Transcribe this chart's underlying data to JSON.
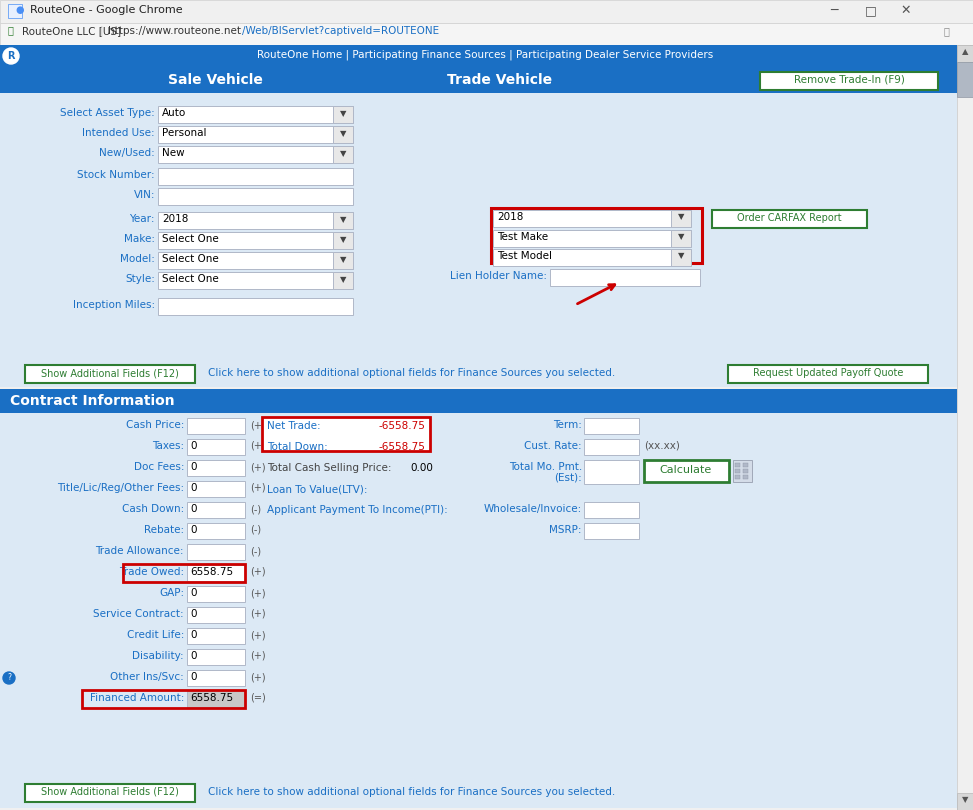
{
  "title_bar": "RouteOne - Google Chrome",
  "url_prefix": "RouteOne LLC [US]",
  "url_main": "https://www.routeone.net",
  "url_path": "/Web/BIServlet?captiveId=ROUTEONE",
  "nav_text": "RouteOne Home | Participating Finance Sources | Participating Dealer Service Providers",
  "bg_color": "#dce9f5",
  "header_color": "#1a6fc4",
  "sale_fields": [
    {
      "label": "Select Asset Type:",
      "value": "Auto",
      "dropdown": true
    },
    {
      "label": "Intended Use:",
      "value": "Personal",
      "dropdown": true
    },
    {
      "label": "New/Used:",
      "value": "New",
      "dropdown": true
    },
    {
      "label": "Stock Number:",
      "value": "",
      "dropdown": false
    },
    {
      "label": "VIN:",
      "value": "",
      "dropdown": false
    },
    {
      "label": "Year:",
      "value": "2018",
      "dropdown": true
    },
    {
      "label": "Make:",
      "value": "Select One",
      "dropdown": true
    },
    {
      "label": "Model:",
      "value": "Select One",
      "dropdown": true
    },
    {
      "label": "Style:",
      "value": "Select One",
      "dropdown": true
    },
    {
      "label": "Inception Miles:",
      "value": "",
      "dropdown": false
    }
  ],
  "trade_vals": [
    "2018",
    "Test Make",
    "Test Model"
  ],
  "lien_label": "Lien Holder Name:",
  "show_fields_text": "Click here to show additional optional fields for Finance Sources you selected.",
  "contract_left": [
    {
      "label": "Cash Price:",
      "value": "",
      "suffix": "(+)"
    },
    {
      "label": "Taxes:",
      "value": "0",
      "suffix": "(+)"
    },
    {
      "label": "Doc Fees:",
      "value": "0",
      "suffix": "(+)"
    },
    {
      "label": "Title/Lic/Reg/Other Fees:",
      "value": "0",
      "suffix": "(+)"
    },
    {
      "label": "Cash Down:",
      "value": "0",
      "suffix": "(-)"
    },
    {
      "label": "Rebate:",
      "value": "0",
      "suffix": "(-)"
    },
    {
      "label": "Trade Allowance:",
      "value": "",
      "suffix": "(-)"
    },
    {
      "label": "Trade Owed:",
      "value": "6558.75",
      "suffix": "(+)",
      "red_box": true
    },
    {
      "label": "GAP:",
      "value": "0",
      "suffix": "(+)"
    },
    {
      "label": "Service Contract:",
      "value": "0",
      "suffix": "(+)"
    },
    {
      "label": "Credit Life:",
      "value": "0",
      "suffix": "(+)"
    },
    {
      "label": "Disability:",
      "value": "0",
      "suffix": "(+)"
    },
    {
      "label": "Other Ins/Svc:",
      "value": "0",
      "suffix": "(+)",
      "info": true
    },
    {
      "label": "Financed Amount:",
      "value": "6558.75",
      "suffix": "(=)",
      "red_box": true,
      "gray_field": true
    }
  ],
  "net_trade_val": "-6558.75",
  "total_down_val": "-6558.75",
  "tcsp_val": "0.00"
}
